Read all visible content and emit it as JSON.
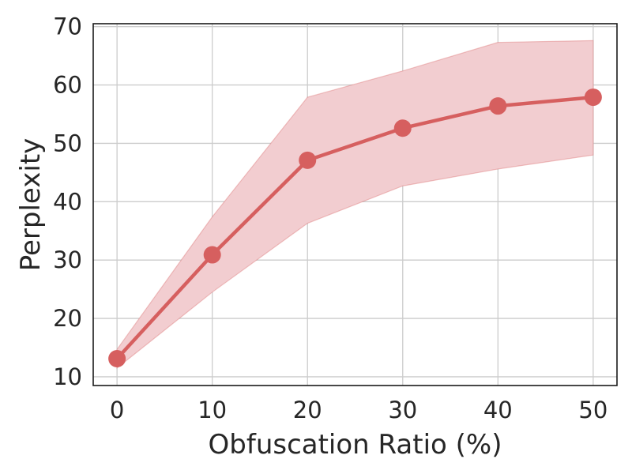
{
  "chart_data": {
    "type": "line",
    "title": "",
    "xlabel": "Obfuscation Ratio (%)",
    "ylabel": "Perplexity",
    "x": [
      0,
      10,
      20,
      30,
      40,
      50
    ],
    "xticks": [
      0,
      10,
      20,
      30,
      40,
      50
    ],
    "yticks": [
      10,
      20,
      30,
      40,
      50,
      60,
      70
    ],
    "xlim": [
      -2.5,
      52.5
    ],
    "ylim": [
      8.5,
      70.5
    ],
    "grid": true,
    "legend": null,
    "series": [
      {
        "name": "Perplexity",
        "values": [
          13.1,
          30.9,
          47.1,
          52.6,
          56.4,
          57.9
        ],
        "lower": [
          11.5,
          24.5,
          36.3,
          42.7,
          45.6,
          48.0
        ],
        "upper": [
          14.7,
          37.4,
          57.9,
          62.4,
          67.3,
          67.6
        ],
        "color": "#d65f5f",
        "band_color": "#f2cdd0"
      }
    ]
  },
  "colors": {
    "grid": "#cccccc",
    "axes": "#1a1a1a",
    "text": "#262626"
  }
}
